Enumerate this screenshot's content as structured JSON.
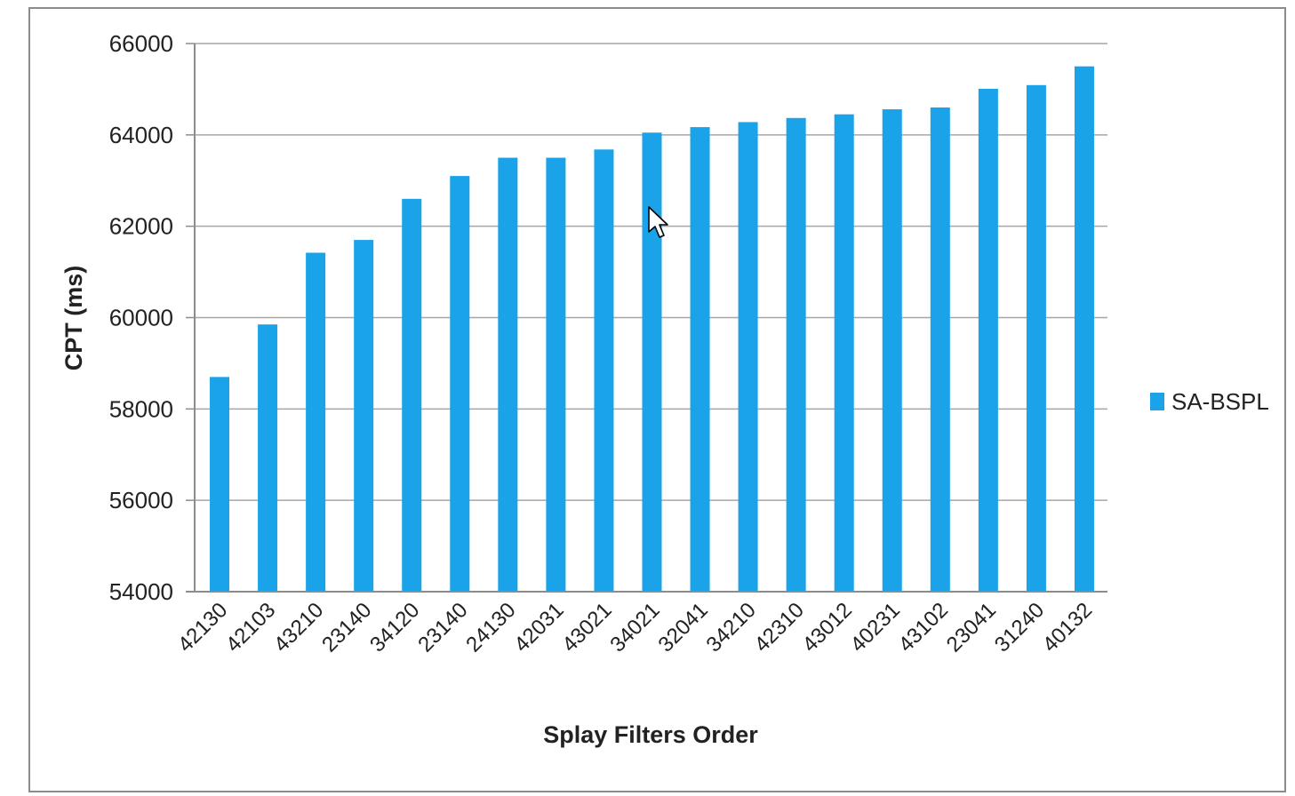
{
  "chart_data": {
    "type": "bar",
    "categories": [
      "42130",
      "42103",
      "43210",
      "23140",
      "34120",
      "23140",
      "24130",
      "42031",
      "43021",
      "34021",
      "32041",
      "34210",
      "42310",
      "43012",
      "40231",
      "43102",
      "23041",
      "31240",
      "40132"
    ],
    "series": [
      {
        "name": "SA-BSPL",
        "color": "#1aa3e8",
        "values": [
          58700,
          59850,
          61420,
          61700,
          62600,
          63100,
          63500,
          63500,
          63680,
          64050,
          64170,
          64280,
          64370,
          64450,
          64560,
          64600,
          65010,
          65090,
          65500
        ]
      }
    ],
    "xlabel": "Splay Filters Order",
    "ylabel": "CPT (ms)",
    "ylim": [
      54000,
      66000
    ],
    "yticks": [
      54000,
      56000,
      58000,
      60000,
      62000,
      64000,
      66000
    ],
    "grid": true,
    "legend_position": "right"
  },
  "cursor": {
    "icon": "mouse-pointer-icon"
  }
}
